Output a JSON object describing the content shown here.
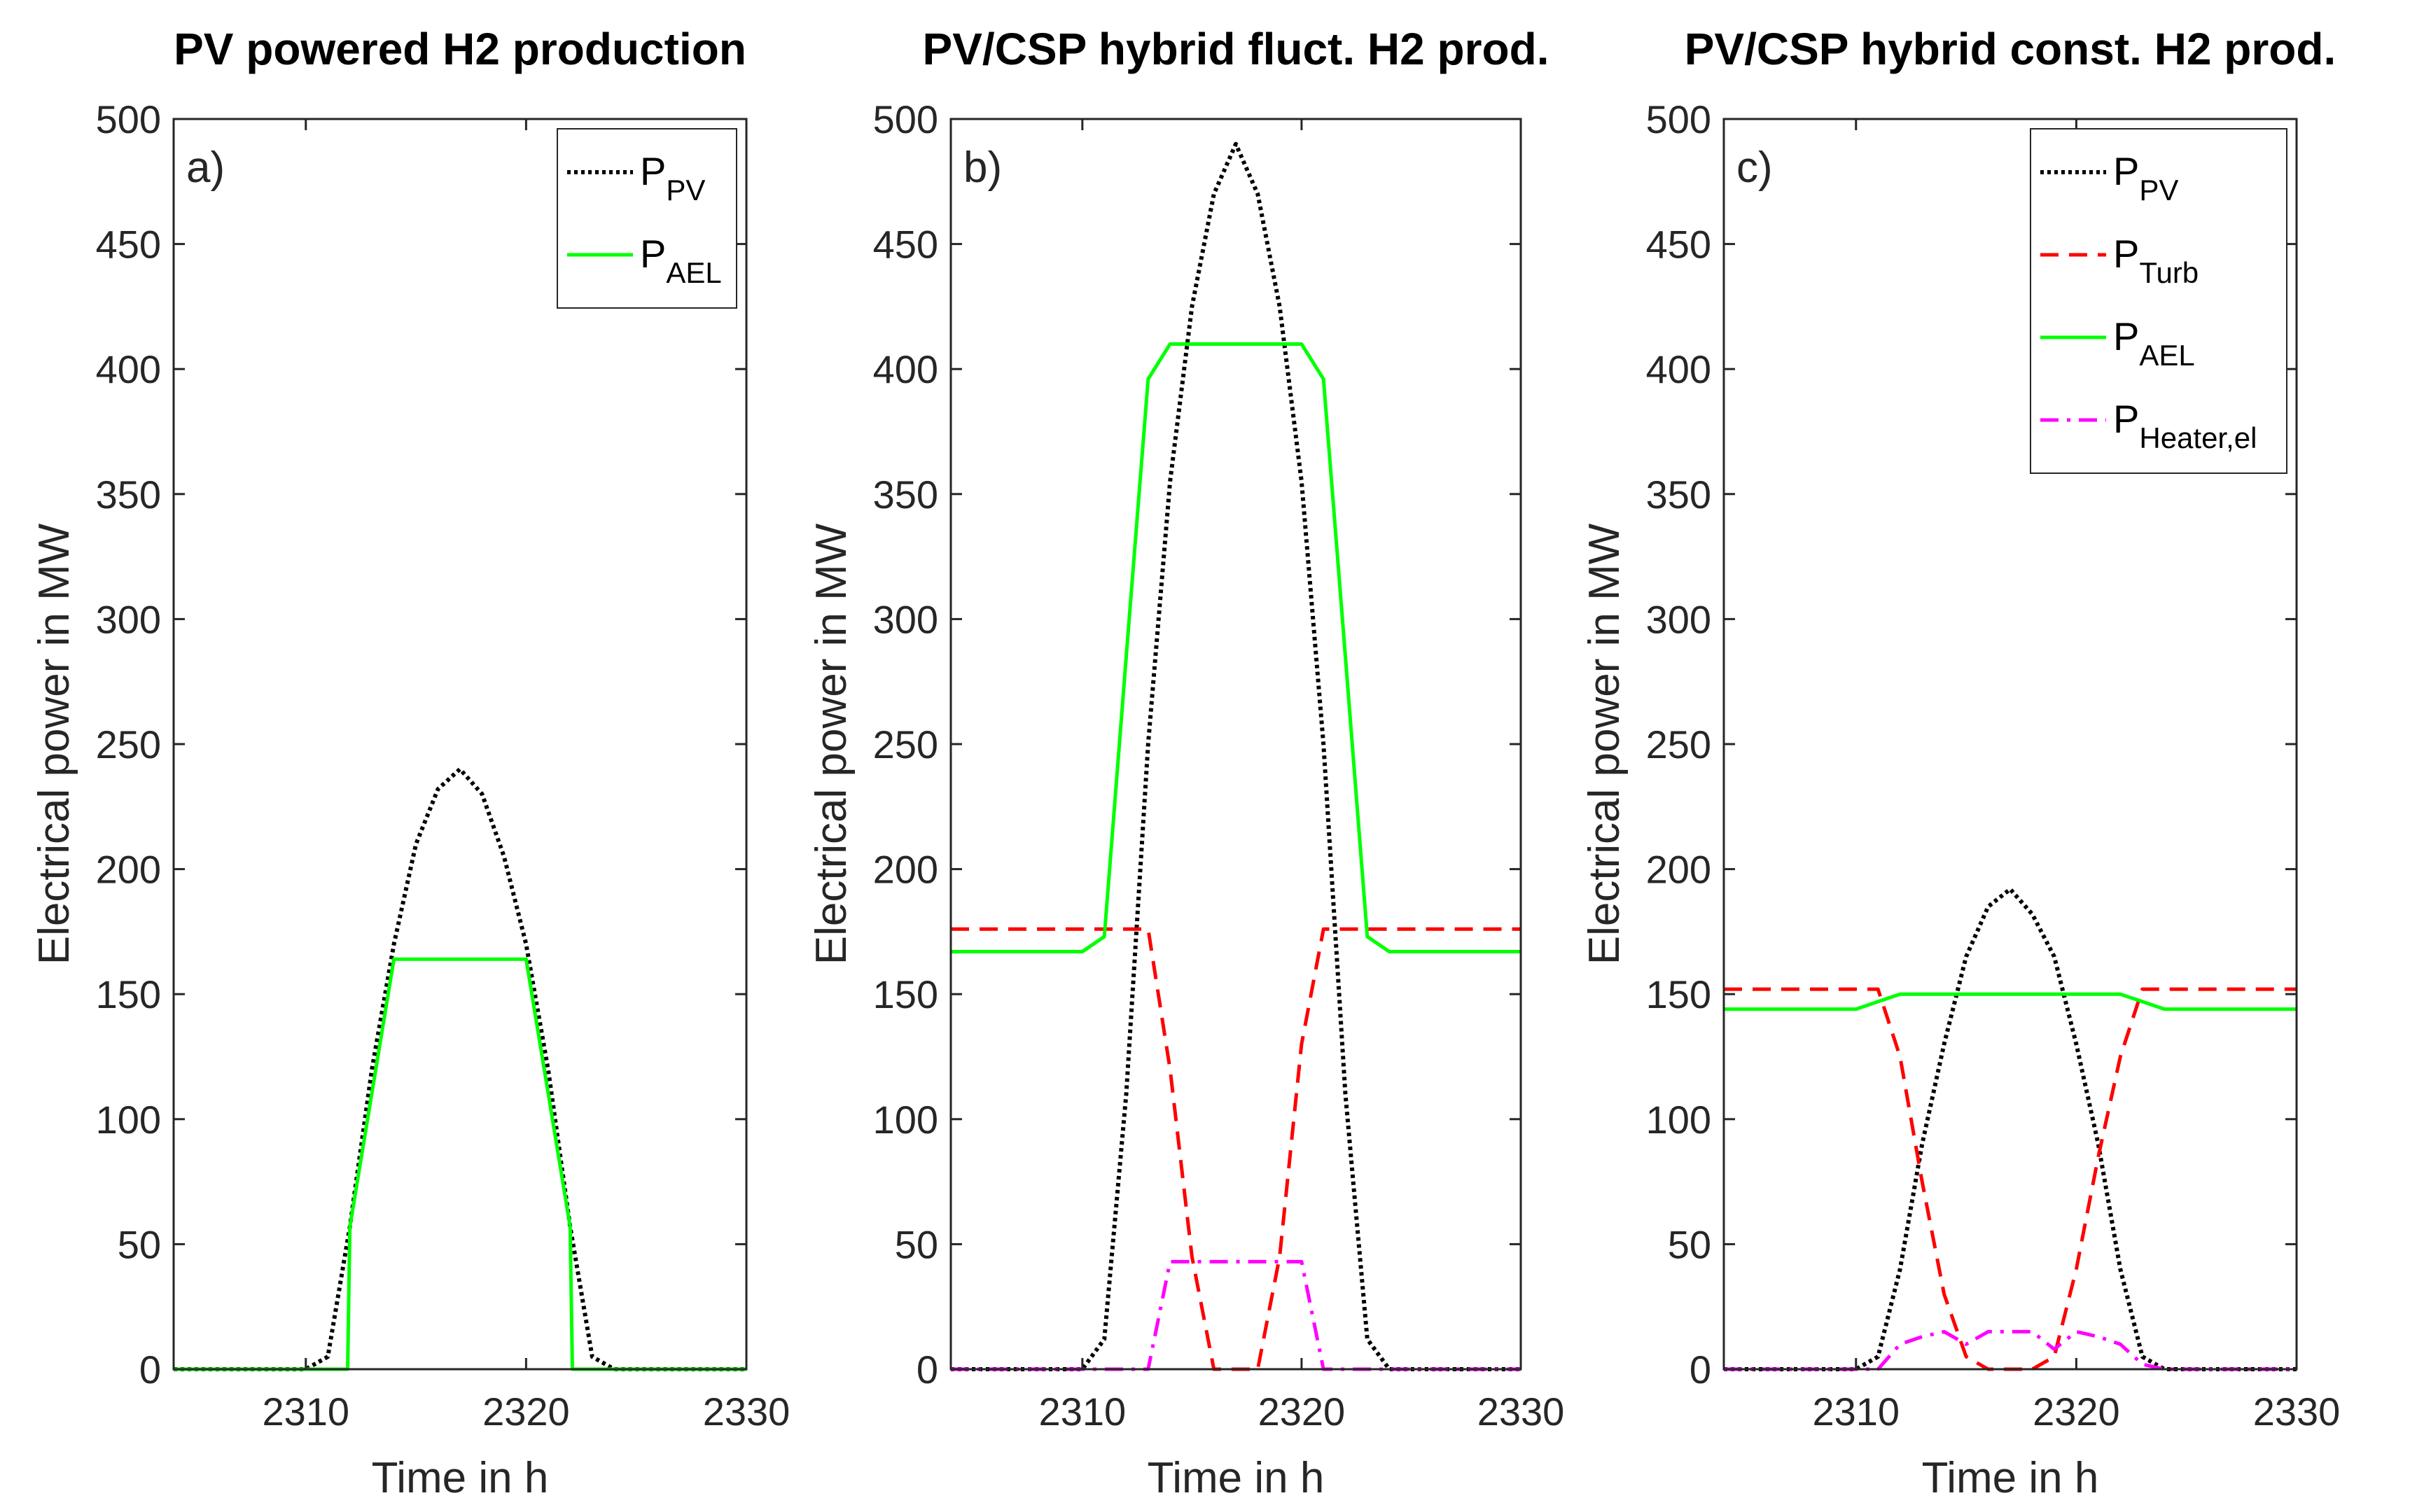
{
  "chart_data": [
    {
      "type": "line",
      "panel_label": "a)",
      "title": "PV powered H2 production",
      "xlabel": "Time in h",
      "ylabel": "Electrical power in MW",
      "xlim": [
        2304,
        2330
      ],
      "ylim": [
        0,
        500
      ],
      "xticks": [
        2310,
        2320,
        2330
      ],
      "yticks": [
        0,
        50,
        100,
        150,
        200,
        250,
        300,
        350,
        400,
        450,
        500
      ],
      "legend_position": "top-right",
      "series": [
        {
          "name": "P_PV",
          "base": "P",
          "sub": "PV",
          "style": "dotted",
          "color": "#000000",
          "x": [
            2304,
            2309,
            2310,
            2311,
            2312,
            2313,
            2314,
            2315,
            2316,
            2317,
            2318,
            2319,
            2320,
            2321,
            2322,
            2323,
            2324,
            2330
          ],
          "y": [
            0,
            0,
            0,
            5,
            57,
            120,
            170,
            210,
            232,
            240,
            230,
            205,
            170,
            120,
            57,
            5,
            0,
            0
          ]
        },
        {
          "name": "P_AEL",
          "base": "P",
          "sub": "AEL",
          "style": "solid",
          "color": "#00ff00",
          "x": [
            2304,
            2311.9,
            2312,
            2314,
            2320,
            2322,
            2322.1,
            2330
          ],
          "y": [
            0,
            0,
            57,
            164,
            164,
            57,
            0,
            0
          ]
        }
      ]
    },
    {
      "type": "line",
      "panel_label": "b)",
      "title": "PV/CSP hybrid fluct. H2 prod.",
      "xlabel": "Time in h",
      "ylabel": "Electrical power in MW",
      "xlim": [
        2304,
        2330
      ],
      "ylim": [
        0,
        500
      ],
      "xticks": [
        2310,
        2320,
        2330
      ],
      "yticks": [
        0,
        50,
        100,
        150,
        200,
        250,
        300,
        350,
        400,
        450,
        500
      ],
      "legend_position": "none",
      "series": [
        {
          "name": "P_PV",
          "base": "P",
          "sub": "PV",
          "style": "dotted",
          "color": "#000000",
          "x": [
            2304,
            2310,
            2311,
            2312,
            2313,
            2314,
            2315,
            2316,
            2317,
            2318,
            2319,
            2320,
            2321,
            2322,
            2323,
            2324,
            2330
          ],
          "y": [
            0,
            0,
            12,
            110,
            250,
            355,
            425,
            470,
            490,
            470,
            425,
            355,
            250,
            110,
            12,
            0,
            0
          ]
        },
        {
          "name": "P_Turb",
          "base": "P",
          "sub": "Turb",
          "style": "dashed",
          "color": "#ff0000",
          "x": [
            2304,
            2313,
            2314,
            2315,
            2316,
            2318,
            2319,
            2320,
            2321,
            2330
          ],
          "y": [
            176,
            176,
            120,
            45,
            0,
            0,
            45,
            130,
            176,
            176
          ]
        },
        {
          "name": "P_AEL",
          "base": "P",
          "sub": "AEL",
          "style": "solid",
          "color": "#00ff00",
          "x": [
            2304,
            2310,
            2311,
            2312,
            2313,
            2314,
            2320,
            2321,
            2322,
            2323,
            2324,
            2330
          ],
          "y": [
            167,
            167,
            173,
            285,
            396,
            410,
            410,
            396,
            285,
            173,
            167,
            167
          ]
        },
        {
          "name": "P_Heater,el",
          "base": "P",
          "sub": "Heater,el",
          "style": "dashdot",
          "color": "#ff00ff",
          "x": [
            2304,
            2313,
            2314,
            2320,
            2321,
            2330
          ],
          "y": [
            0,
            0,
            43,
            43,
            0,
            0
          ]
        }
      ]
    },
    {
      "type": "line",
      "panel_label": "c)",
      "title": "PV/CSP hybrid const. H2 prod.",
      "xlabel": "Time in h",
      "ylabel": "Electrical power in MW",
      "xlim": [
        2304,
        2330
      ],
      "ylim": [
        0,
        500
      ],
      "xticks": [
        2310,
        2320,
        2330
      ],
      "yticks": [
        0,
        50,
        100,
        150,
        200,
        250,
        300,
        350,
        400,
        450,
        500
      ],
      "legend_position": "top-right",
      "series": [
        {
          "name": "P_PV",
          "base": "P",
          "sub": "PV",
          "style": "dotted",
          "color": "#000000",
          "x": [
            2304,
            2310,
            2311,
            2312,
            2313,
            2314,
            2315,
            2316,
            2317,
            2318,
            2319,
            2320,
            2321,
            2322,
            2323,
            2324,
            2330
          ],
          "y": [
            0,
            0,
            5,
            40,
            90,
            130,
            165,
            185,
            192,
            182,
            165,
            130,
            90,
            40,
            5,
            0,
            0
          ]
        },
        {
          "name": "P_Turb",
          "base": "P",
          "sub": "Turb",
          "style": "dashed",
          "color": "#ff0000",
          "x": [
            2304,
            2311,
            2312,
            2313,
            2314,
            2315,
            2316,
            2318,
            2319,
            2320,
            2321,
            2322,
            2323,
            2330
          ],
          "y": [
            152,
            152,
            125,
            75,
            30,
            5,
            0,
            0,
            5,
            40,
            85,
            125,
            152,
            152
          ]
        },
        {
          "name": "P_AEL",
          "base": "P",
          "sub": "AEL",
          "style": "solid",
          "color": "#00ff00",
          "x": [
            2304,
            2310,
            2311,
            2312,
            2321,
            2322,
            2323,
            2324,
            2330
          ],
          "y": [
            144,
            144,
            147,
            150,
            150,
            150,
            147,
            144,
            144
          ]
        },
        {
          "name": "P_Heater,el",
          "base": "P",
          "sub": "Heater,el",
          "style": "dashdot",
          "color": "#ff00ff",
          "x": [
            2304,
            2311,
            2312,
            2313,
            2314,
            2315,
            2316,
            2318,
            2319,
            2320,
            2321,
            2322,
            2323,
            2324,
            2330
          ],
          "y": [
            0,
            0,
            10,
            13,
            15,
            10,
            15,
            15,
            8,
            15,
            13,
            10,
            2,
            0,
            0
          ]
        }
      ]
    }
  ]
}
